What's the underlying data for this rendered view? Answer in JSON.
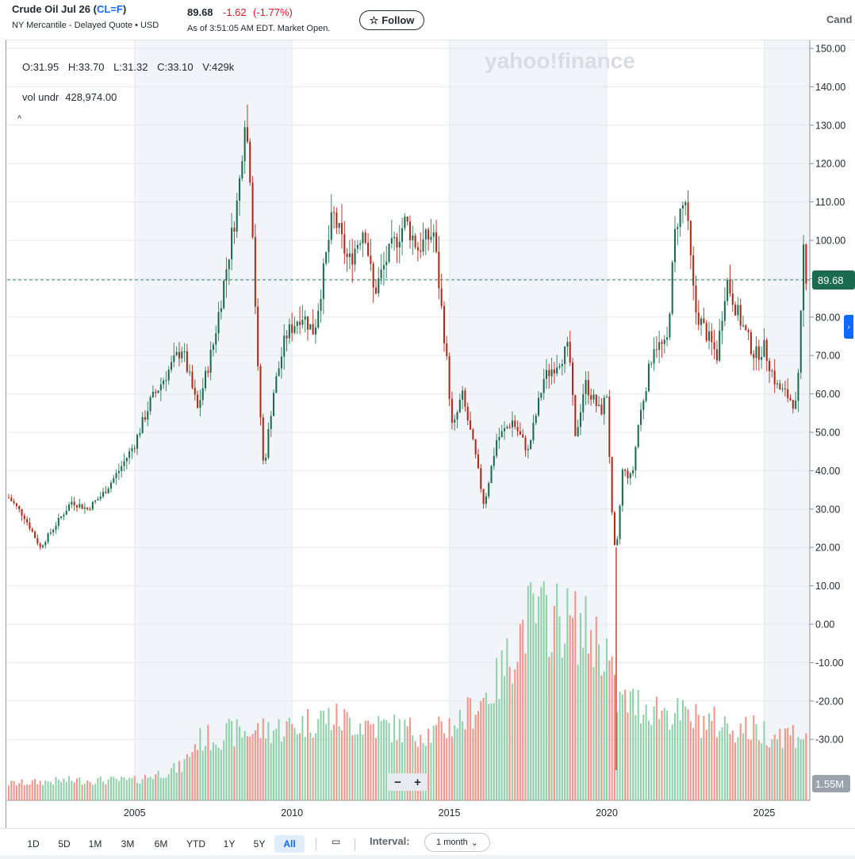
{
  "header": {
    "name": "Crude Oil Jul 26",
    "ticker": "CL=F",
    "exchange": "NY Mercantile - Delayed Quote • USD",
    "price": "89.68",
    "change": "-1.62",
    "change_pct": "(-1.77%)",
    "as_of": "As of 3:51:05 AM EDT. Market Open.",
    "follow_label": "Follow",
    "chart_type_label": "Cand"
  },
  "ohlc": {
    "open": "O:31.95",
    "high": "H:33.70",
    "low": "L:31.32",
    "close": "C:33.10",
    "volume": "V:429k"
  },
  "volume_indicator": {
    "label": "vol undr",
    "value": "428,974.00"
  },
  "watermark": "yahoo!finance",
  "colors": {
    "up": "#1a6b4f",
    "down": "#b02a1a",
    "vol_up": "#8fd1a8",
    "vol_down": "#f2958a",
    "accent": "#0f69ff",
    "negative_text": "#eb0f29"
  },
  "chart_data": {
    "type": "candlestick",
    "y_axis": {
      "ticks": [
        "150.00",
        "140.00",
        "130.00",
        "120.00",
        "110.00",
        "100.00",
        "90.00",
        "80.00",
        "70.00",
        "60.00",
        "50.00",
        "40.00",
        "30.00",
        "20.00",
        "10.00",
        "0.00",
        "-10.00",
        "-20.00",
        "-30.00"
      ],
      "range": [
        -35,
        152
      ]
    },
    "x_axis": {
      "ticks": [
        "2005",
        "2010",
        "2015",
        "2020",
        "2025"
      ],
      "range": [
        2000.95,
        2026.45
      ]
    },
    "shaded_periods": [
      [
        2005,
        2010
      ],
      [
        2015,
        2020
      ],
      [
        2025,
        2026.45
      ]
    ],
    "last_price": 89.68,
    "last_price_label": "89.68",
    "volume_label": "1.55M",
    "price_path": [
      [
        2001.0,
        33
      ],
      [
        2001.5,
        28
      ],
      [
        2002.0,
        20
      ],
      [
        2002.5,
        26
      ],
      [
        2003.0,
        32
      ],
      [
        2003.5,
        30
      ],
      [
        2004.0,
        34
      ],
      [
        2004.5,
        40
      ],
      [
        2005.0,
        47
      ],
      [
        2005.5,
        58
      ],
      [
        2006.0,
        65
      ],
      [
        2006.5,
        72
      ],
      [
        2007.0,
        56
      ],
      [
        2007.5,
        73
      ],
      [
        2007.9,
        92
      ],
      [
        2008.3,
        112
      ],
      [
        2008.5,
        133
      ],
      [
        2008.7,
        115
      ],
      [
        2008.9,
        68
      ],
      [
        2009.1,
        40
      ],
      [
        2009.4,
        60
      ],
      [
        2009.8,
        75
      ],
      [
        2010.3,
        81
      ],
      [
        2010.7,
        76
      ],
      [
        2011.3,
        107
      ],
      [
        2011.8,
        94
      ],
      [
        2012.3,
        104
      ],
      [
        2012.6,
        86
      ],
      [
        2013.0,
        95
      ],
      [
        2013.6,
        105
      ],
      [
        2014.0,
        98
      ],
      [
        2014.5,
        102
      ],
      [
        2014.9,
        70
      ],
      [
        2015.1,
        50
      ],
      [
        2015.4,
        60
      ],
      [
        2015.8,
        45
      ],
      [
        2016.1,
        31
      ],
      [
        2016.5,
        48
      ],
      [
        2017.0,
        53
      ],
      [
        2017.5,
        45
      ],
      [
        2018.0,
        64
      ],
      [
        2018.8,
        72
      ],
      [
        2019.0,
        48
      ],
      [
        2019.3,
        63
      ],
      [
        2019.8,
        55
      ],
      [
        2020.0,
        60
      ],
      [
        2020.2,
        22
      ],
      [
        2020.3,
        18
      ],
      [
        2020.5,
        40
      ],
      [
        2020.8,
        38
      ],
      [
        2021.0,
        52
      ],
      [
        2021.5,
        73
      ],
      [
        2021.9,
        72
      ],
      [
        2022.2,
        105
      ],
      [
        2022.5,
        110
      ],
      [
        2022.8,
        82
      ],
      [
        2023.2,
        75
      ],
      [
        2023.5,
        70
      ],
      [
        2023.8,
        90
      ],
      [
        2024.2,
        80
      ],
      [
        2024.7,
        70
      ],
      [
        2025.0,
        72
      ],
      [
        2025.4,
        62
      ],
      [
        2025.8,
        59
      ],
      [
        2026.0,
        57
      ],
      [
        2026.1,
        65
      ],
      [
        2026.25,
        98
      ],
      [
        2026.35,
        89.68
      ]
    ],
    "volume_scale_note": "bars at bottom, relative heights",
    "volume_path": [
      [
        2001.0,
        0.05
      ],
      [
        2003.0,
        0.06
      ],
      [
        2005.0,
        0.06
      ],
      [
        2006.5,
        0.1
      ],
      [
        2007.0,
        0.18
      ],
      [
        2008.0,
        0.2
      ],
      [
        2010.0,
        0.22
      ],
      [
        2011.0,
        0.25
      ],
      [
        2013.0,
        0.22
      ],
      [
        2014.5,
        0.2
      ],
      [
        2015.5,
        0.25
      ],
      [
        2016.5,
        0.35
      ],
      [
        2017.5,
        0.55
      ],
      [
        2018.5,
        0.55
      ],
      [
        2019.5,
        0.5
      ],
      [
        2020.0,
        0.45
      ],
      [
        2020.3,
        0.3
      ],
      [
        2021.5,
        0.28
      ],
      [
        2022.5,
        0.25
      ],
      [
        2024.0,
        0.22
      ],
      [
        2025.5,
        0.2
      ],
      [
        2026.3,
        0.2
      ]
    ]
  },
  "zoom": {
    "minus": "−",
    "plus": "+"
  },
  "toolbar": {
    "ranges": [
      "1D",
      "5D",
      "1M",
      "3M",
      "6M",
      "YTD",
      "1Y",
      "5Y",
      "All"
    ],
    "active": "All",
    "interval_label": "Interval:",
    "interval_value": "1 month"
  }
}
